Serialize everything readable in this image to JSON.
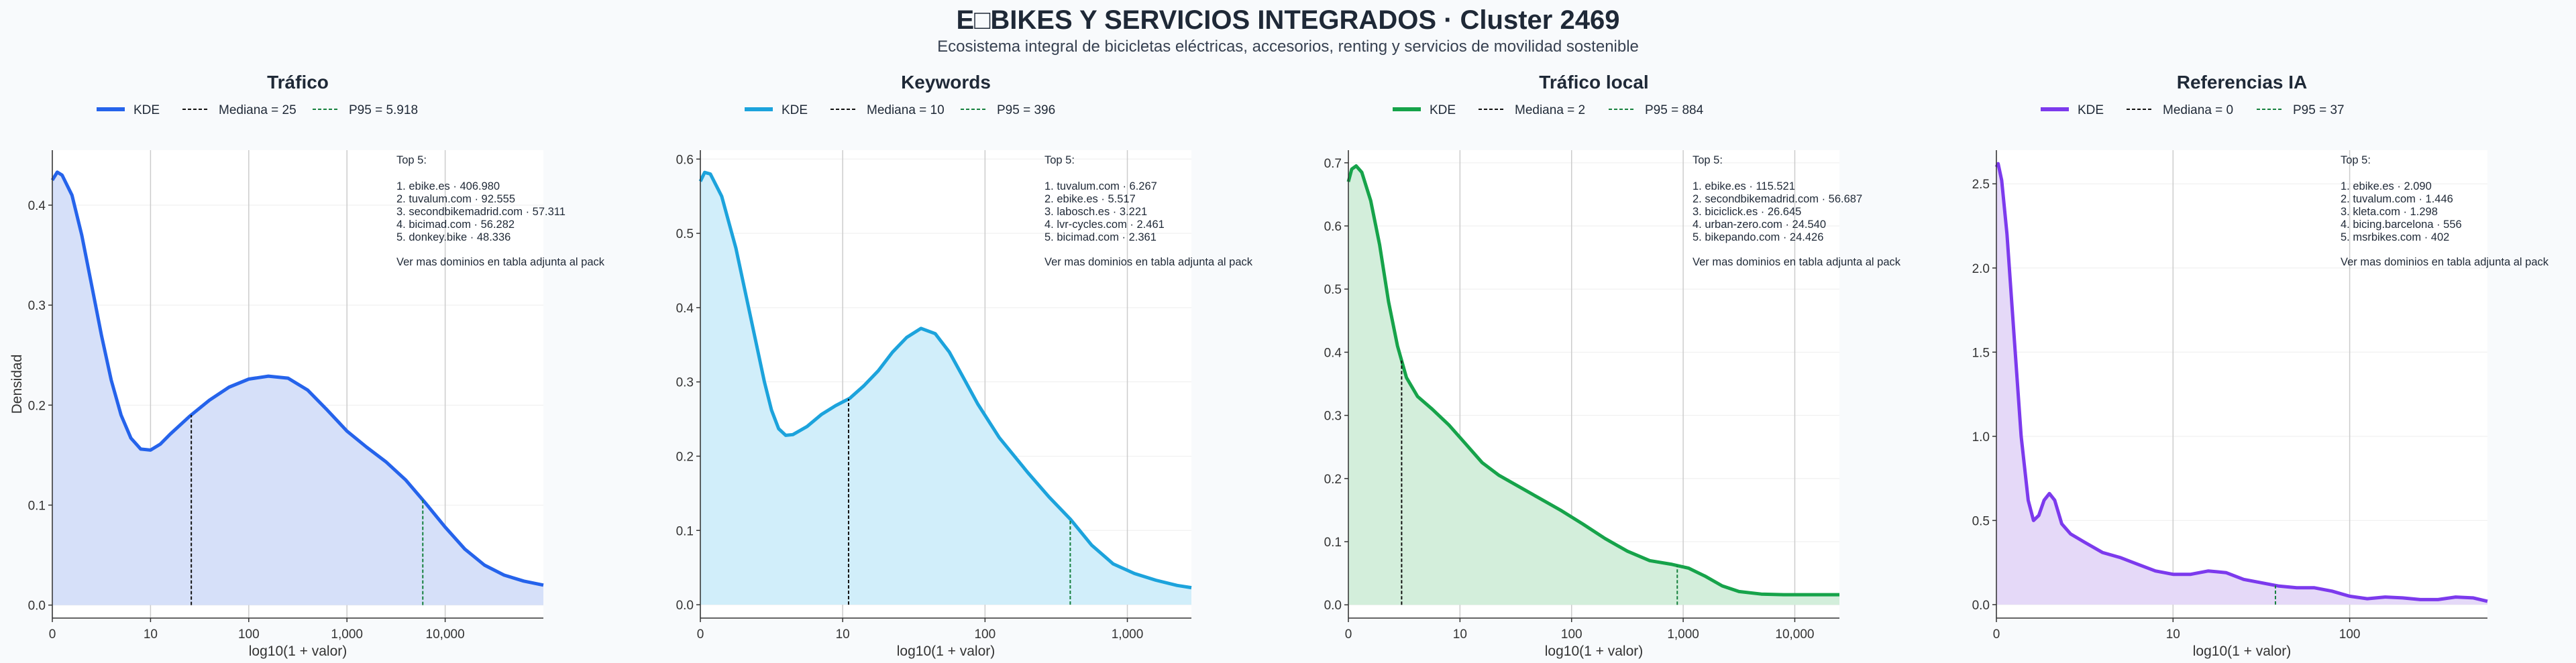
{
  "header": {
    "title": "E□BIKES Y SERVICIOS INTEGRADOS · Cluster 2469",
    "subtitle": "Ecosistema integral de bicicletas eléctricas, accesorios, renting y servicios de movilidad sostenible"
  },
  "colors": {
    "background": "#f8fafc",
    "median_line": "#111111",
    "p95_line": "#15803d"
  },
  "chart_data": [
    {
      "type": "area",
      "title": "Tráfico",
      "color": "#2563eb",
      "fill": "#d6e0f9",
      "legend": [
        "KDE",
        "Mediana = 25",
        "P95 = 5.918"
      ],
      "median": 25,
      "p95": 5918,
      "xlabel": "log10(1 + valor)",
      "ylabel": "Densidad",
      "xlim": [
        0,
        5.0
      ],
      "x_ticks": [
        0,
        1,
        2,
        3,
        4
      ],
      "x_tick_labels": [
        "0",
        "10",
        "100",
        "1,000",
        "10,000"
      ],
      "ylim": [
        -0.013,
        0.455
      ],
      "y_ticks": [
        0.0,
        0.1,
        0.2,
        0.3,
        0.4
      ],
      "y_tick_labels": [
        "0.0",
        "0.1",
        "0.2",
        "0.3",
        "0.4"
      ],
      "curve": [
        [
          0,
          0.425
        ],
        [
          0.05,
          0.433
        ],
        [
          0.1,
          0.43
        ],
        [
          0.2,
          0.41
        ],
        [
          0.3,
          0.37
        ],
        [
          0.4,
          0.32
        ],
        [
          0.5,
          0.27
        ],
        [
          0.6,
          0.225
        ],
        [
          0.7,
          0.19
        ],
        [
          0.8,
          0.167
        ],
        [
          0.9,
          0.156
        ],
        [
          1.0,
          0.155
        ],
        [
          1.1,
          0.161
        ],
        [
          1.2,
          0.171
        ],
        [
          1.4,
          0.189
        ],
        [
          1.6,
          0.205
        ],
        [
          1.8,
          0.218
        ],
        [
          2.0,
          0.226
        ],
        [
          2.2,
          0.229
        ],
        [
          2.4,
          0.227
        ],
        [
          2.6,
          0.215
        ],
        [
          2.8,
          0.195
        ],
        [
          3.0,
          0.174
        ],
        [
          3.2,
          0.158
        ],
        [
          3.4,
          0.143
        ],
        [
          3.6,
          0.125
        ],
        [
          3.8,
          0.102
        ],
        [
          4.0,
          0.078
        ],
        [
          4.2,
          0.056
        ],
        [
          4.4,
          0.04
        ],
        [
          4.6,
          0.03
        ],
        [
          4.8,
          0.024
        ],
        [
          5.0,
          0.02
        ]
      ],
      "top_title": "Top 5:",
      "top_items": [
        "1. ebike.es · 406.980",
        "2. tuvalum.com · 92.555",
        "3. secondbikemadrid.com · 57.311",
        "4. bicimad.com · 56.282",
        "5. donkey.bike · 48.336"
      ],
      "top_note": "Ver mas dominios en tabla adjunta al pack"
    },
    {
      "type": "area",
      "title": "Keywords",
      "color": "#1ca3dc",
      "fill": "#d1eefa",
      "legend": [
        "KDE",
        "Mediana = 10",
        "P95 = 396"
      ],
      "median": 10,
      "p95": 396,
      "xlabel": "log10(1 + valor)",
      "ylabel": "",
      "xlim": [
        0,
        3.45
      ],
      "x_ticks": [
        0,
        1,
        2,
        3
      ],
      "x_tick_labels": [
        "0",
        "10",
        "100",
        "1,000"
      ],
      "ylim": [
        -0.018,
        0.612
      ],
      "y_ticks": [
        0.0,
        0.1,
        0.2,
        0.3,
        0.4,
        0.5,
        0.6
      ],
      "y_tick_labels": [
        "0.0",
        "0.1",
        "0.2",
        "0.3",
        "0.4",
        "0.5",
        "0.6"
      ],
      "curve": [
        [
          0,
          0.57
        ],
        [
          0.03,
          0.582
        ],
        [
          0.07,
          0.58
        ],
        [
          0.15,
          0.55
        ],
        [
          0.25,
          0.48
        ],
        [
          0.35,
          0.39
        ],
        [
          0.45,
          0.3
        ],
        [
          0.5,
          0.262
        ],
        [
          0.55,
          0.237
        ],
        [
          0.6,
          0.228
        ],
        [
          0.65,
          0.229
        ],
        [
          0.75,
          0.24
        ],
        [
          0.85,
          0.256
        ],
        [
          0.95,
          0.268
        ],
        [
          1.05,
          0.278
        ],
        [
          1.15,
          0.295
        ],
        [
          1.25,
          0.315
        ],
        [
          1.35,
          0.34
        ],
        [
          1.45,
          0.36
        ],
        [
          1.55,
          0.372
        ],
        [
          1.65,
          0.365
        ],
        [
          1.75,
          0.34
        ],
        [
          1.85,
          0.305
        ],
        [
          1.95,
          0.27
        ],
        [
          2.1,
          0.225
        ],
        [
          2.3,
          0.178
        ],
        [
          2.45,
          0.145
        ],
        [
          2.6,
          0.115
        ],
        [
          2.75,
          0.08
        ],
        [
          2.9,
          0.055
        ],
        [
          3.05,
          0.042
        ],
        [
          3.2,
          0.033
        ],
        [
          3.35,
          0.026
        ],
        [
          3.45,
          0.023
        ]
      ],
      "top_title": "Top 5:",
      "top_items": [
        "1. tuvalum.com · 6.267",
        "2. ebike.es · 5.517",
        "3. labosch.es · 3.221",
        "4. lvr-cycles.com · 2.461",
        "5. bicimad.com · 2.361"
      ],
      "top_note": "Ver mas dominios en tabla adjunta al pack"
    },
    {
      "type": "area",
      "title": "Tráfico local",
      "color": "#16a34a",
      "fill": "#d3eedb",
      "legend": [
        "KDE",
        "Mediana = 2",
        "P95 = 884"
      ],
      "median": 2,
      "p95": 884,
      "xlabel": "log10(1 + valor)",
      "ylabel": "",
      "xlim": [
        0,
        4.4
      ],
      "x_ticks": [
        0,
        1,
        2,
        3,
        4
      ],
      "x_tick_labels": [
        "0",
        "10",
        "100",
        "1,000",
        "10,000"
      ],
      "ylim": [
        -0.021,
        0.72
      ],
      "y_ticks": [
        0.0,
        0.1,
        0.2,
        0.3,
        0.4,
        0.5,
        0.6,
        0.7
      ],
      "y_tick_labels": [
        "0.0",
        "0.1",
        "0.2",
        "0.3",
        "0.4",
        "0.5",
        "0.6",
        "0.7"
      ],
      "curve": [
        [
          0,
          0.67
        ],
        [
          0.03,
          0.69
        ],
        [
          0.07,
          0.695
        ],
        [
          0.12,
          0.685
        ],
        [
          0.2,
          0.64
        ],
        [
          0.28,
          0.57
        ],
        [
          0.36,
          0.48
        ],
        [
          0.44,
          0.41
        ],
        [
          0.52,
          0.36
        ],
        [
          0.62,
          0.33
        ],
        [
          0.75,
          0.31
        ],
        [
          0.9,
          0.285
        ],
        [
          1.05,
          0.255
        ],
        [
          1.2,
          0.225
        ],
        [
          1.35,
          0.205
        ],
        [
          1.5,
          0.19
        ],
        [
          1.7,
          0.17
        ],
        [
          1.9,
          0.15
        ],
        [
          2.1,
          0.128
        ],
        [
          2.3,
          0.105
        ],
        [
          2.5,
          0.085
        ],
        [
          2.7,
          0.07
        ],
        [
          2.9,
          0.064
        ],
        [
          3.05,
          0.058
        ],
        [
          3.2,
          0.045
        ],
        [
          3.35,
          0.03
        ],
        [
          3.5,
          0.021
        ],
        [
          3.7,
          0.017
        ],
        [
          3.9,
          0.016
        ],
        [
          4.1,
          0.016
        ],
        [
          4.4,
          0.016
        ]
      ],
      "top_title": "Top 5:",
      "top_items": [
        "1. ebike.es · 115.521",
        "2. secondbikemadrid.com · 56.687",
        "3. biciclick.es · 26.645",
        "4. urban-zero.com · 24.540",
        "5. bikepando.com · 24.426"
      ],
      "top_note": "Ver mas dominios en tabla adjunta al pack"
    },
    {
      "type": "area",
      "title": "Referencias IA",
      "color": "#7c3aed",
      "fill": "#e5d9f8",
      "legend": [
        "KDE",
        "Mediana = 0",
        "P95 = 37"
      ],
      "median": 0,
      "p95": 37,
      "xlabel": "log10(1 + valor)",
      "ylabel": "",
      "xlim": [
        0,
        2.78
      ],
      "x_ticks": [
        0,
        1,
        2
      ],
      "x_tick_labels": [
        "0",
        "10",
        "100"
      ],
      "ylim": [
        -0.08,
        2.7
      ],
      "y_ticks": [
        0.0,
        0.5,
        1.0,
        1.5,
        2.0,
        2.5
      ],
      "y_tick_labels": [
        "0.0",
        "0.5",
        "1.0",
        "1.5",
        "2.0",
        "2.5"
      ],
      "curve": [
        [
          0,
          2.6
        ],
        [
          0.01,
          2.62
        ],
        [
          0.03,
          2.52
        ],
        [
          0.06,
          2.2
        ],
        [
          0.1,
          1.6
        ],
        [
          0.14,
          1.0
        ],
        [
          0.18,
          0.62
        ],
        [
          0.21,
          0.5
        ],
        [
          0.24,
          0.53
        ],
        [
          0.27,
          0.62
        ],
        [
          0.3,
          0.66
        ],
        [
          0.33,
          0.62
        ],
        [
          0.37,
          0.48
        ],
        [
          0.42,
          0.42
        ],
        [
          0.5,
          0.37
        ],
        [
          0.6,
          0.31
        ],
        [
          0.7,
          0.28
        ],
        [
          0.8,
          0.24
        ],
        [
          0.9,
          0.2
        ],
        [
          1.0,
          0.18
        ],
        [
          1.1,
          0.18
        ],
        [
          1.2,
          0.2
        ],
        [
          1.3,
          0.19
        ],
        [
          1.4,
          0.15
        ],
        [
          1.5,
          0.13
        ],
        [
          1.6,
          0.11
        ],
        [
          1.7,
          0.1
        ],
        [
          1.8,
          0.1
        ],
        [
          1.9,
          0.08
        ],
        [
          2.0,
          0.05
        ],
        [
          2.1,
          0.035
        ],
        [
          2.2,
          0.045
        ],
        [
          2.3,
          0.04
        ],
        [
          2.4,
          0.03
        ],
        [
          2.5,
          0.03
        ],
        [
          2.6,
          0.045
        ],
        [
          2.7,
          0.04
        ],
        [
          2.78,
          0.02
        ]
      ],
      "top_title": "Top 5:",
      "top_items": [
        "1. ebike.es · 2.090",
        "2. tuvalum.com · 1.446",
        "3. kleta.com · 1.298",
        "4. bicing.barcelona · 556",
        "5. msrbikes.com · 402"
      ],
      "top_note": "Ver mas dominios en tabla adjunta al pack"
    }
  ]
}
